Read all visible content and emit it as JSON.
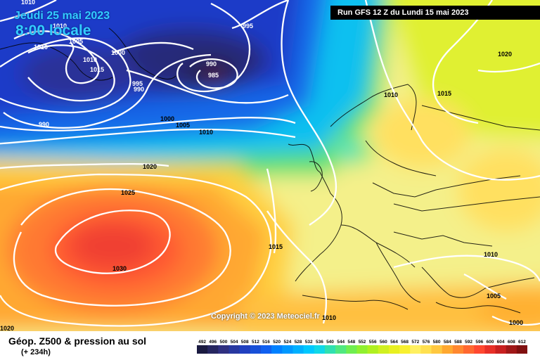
{
  "header": {
    "valid_date": "Jeudi 25 mai 2023",
    "valid_time": "8:00 locale",
    "run": "Run GFS 12 Z du Lundi 15 mai 2023"
  },
  "copyright": "Copyright © 2023 Meteociel.fr",
  "legend": {
    "title": "Géop. Z500 & pression au sol",
    "lead": "(+ 234h)",
    "ticks": [
      "492",
      "496",
      "500",
      "504",
      "508",
      "512",
      "516",
      "520",
      "524",
      "528",
      "532",
      "536",
      "540",
      "544",
      "548",
      "552",
      "556",
      "560",
      "564",
      "568",
      "572",
      "576",
      "580",
      "584",
      "588",
      "592",
      "596",
      "600",
      "604",
      "608",
      "612"
    ],
    "colors": [
      "#1a1a40",
      "#262660",
      "#303080",
      "#2838a0",
      "#2040c0",
      "#1850d8",
      "#1060f0",
      "#0080ff",
      "#0098ff",
      "#00b0ff",
      "#00c8ff",
      "#10d8e8",
      "#30e0b0",
      "#50e880",
      "#70ee50",
      "#90f030",
      "#b0f020",
      "#d0f020",
      "#e8f020",
      "#f8f030",
      "#fff060",
      "#ffe050",
      "#ffc840",
      "#ffa830",
      "#ff8830",
      "#ff6830",
      "#ff4830",
      "#e83028",
      "#c82020",
      "#a01818",
      "#801010"
    ]
  },
  "isobars": [
    "1010",
    "1010",
    "1010",
    "1005",
    "1010",
    "1015",
    "1000",
    "995",
    "990",
    "995",
    "990",
    "985",
    "990",
    "1000",
    "1005",
    "1010",
    "1020",
    "1025",
    "1030",
    "1020",
    "1010",
    "1015",
    "1020",
    "1015",
    "1010",
    "1005",
    "1000",
    "1010"
  ]
}
